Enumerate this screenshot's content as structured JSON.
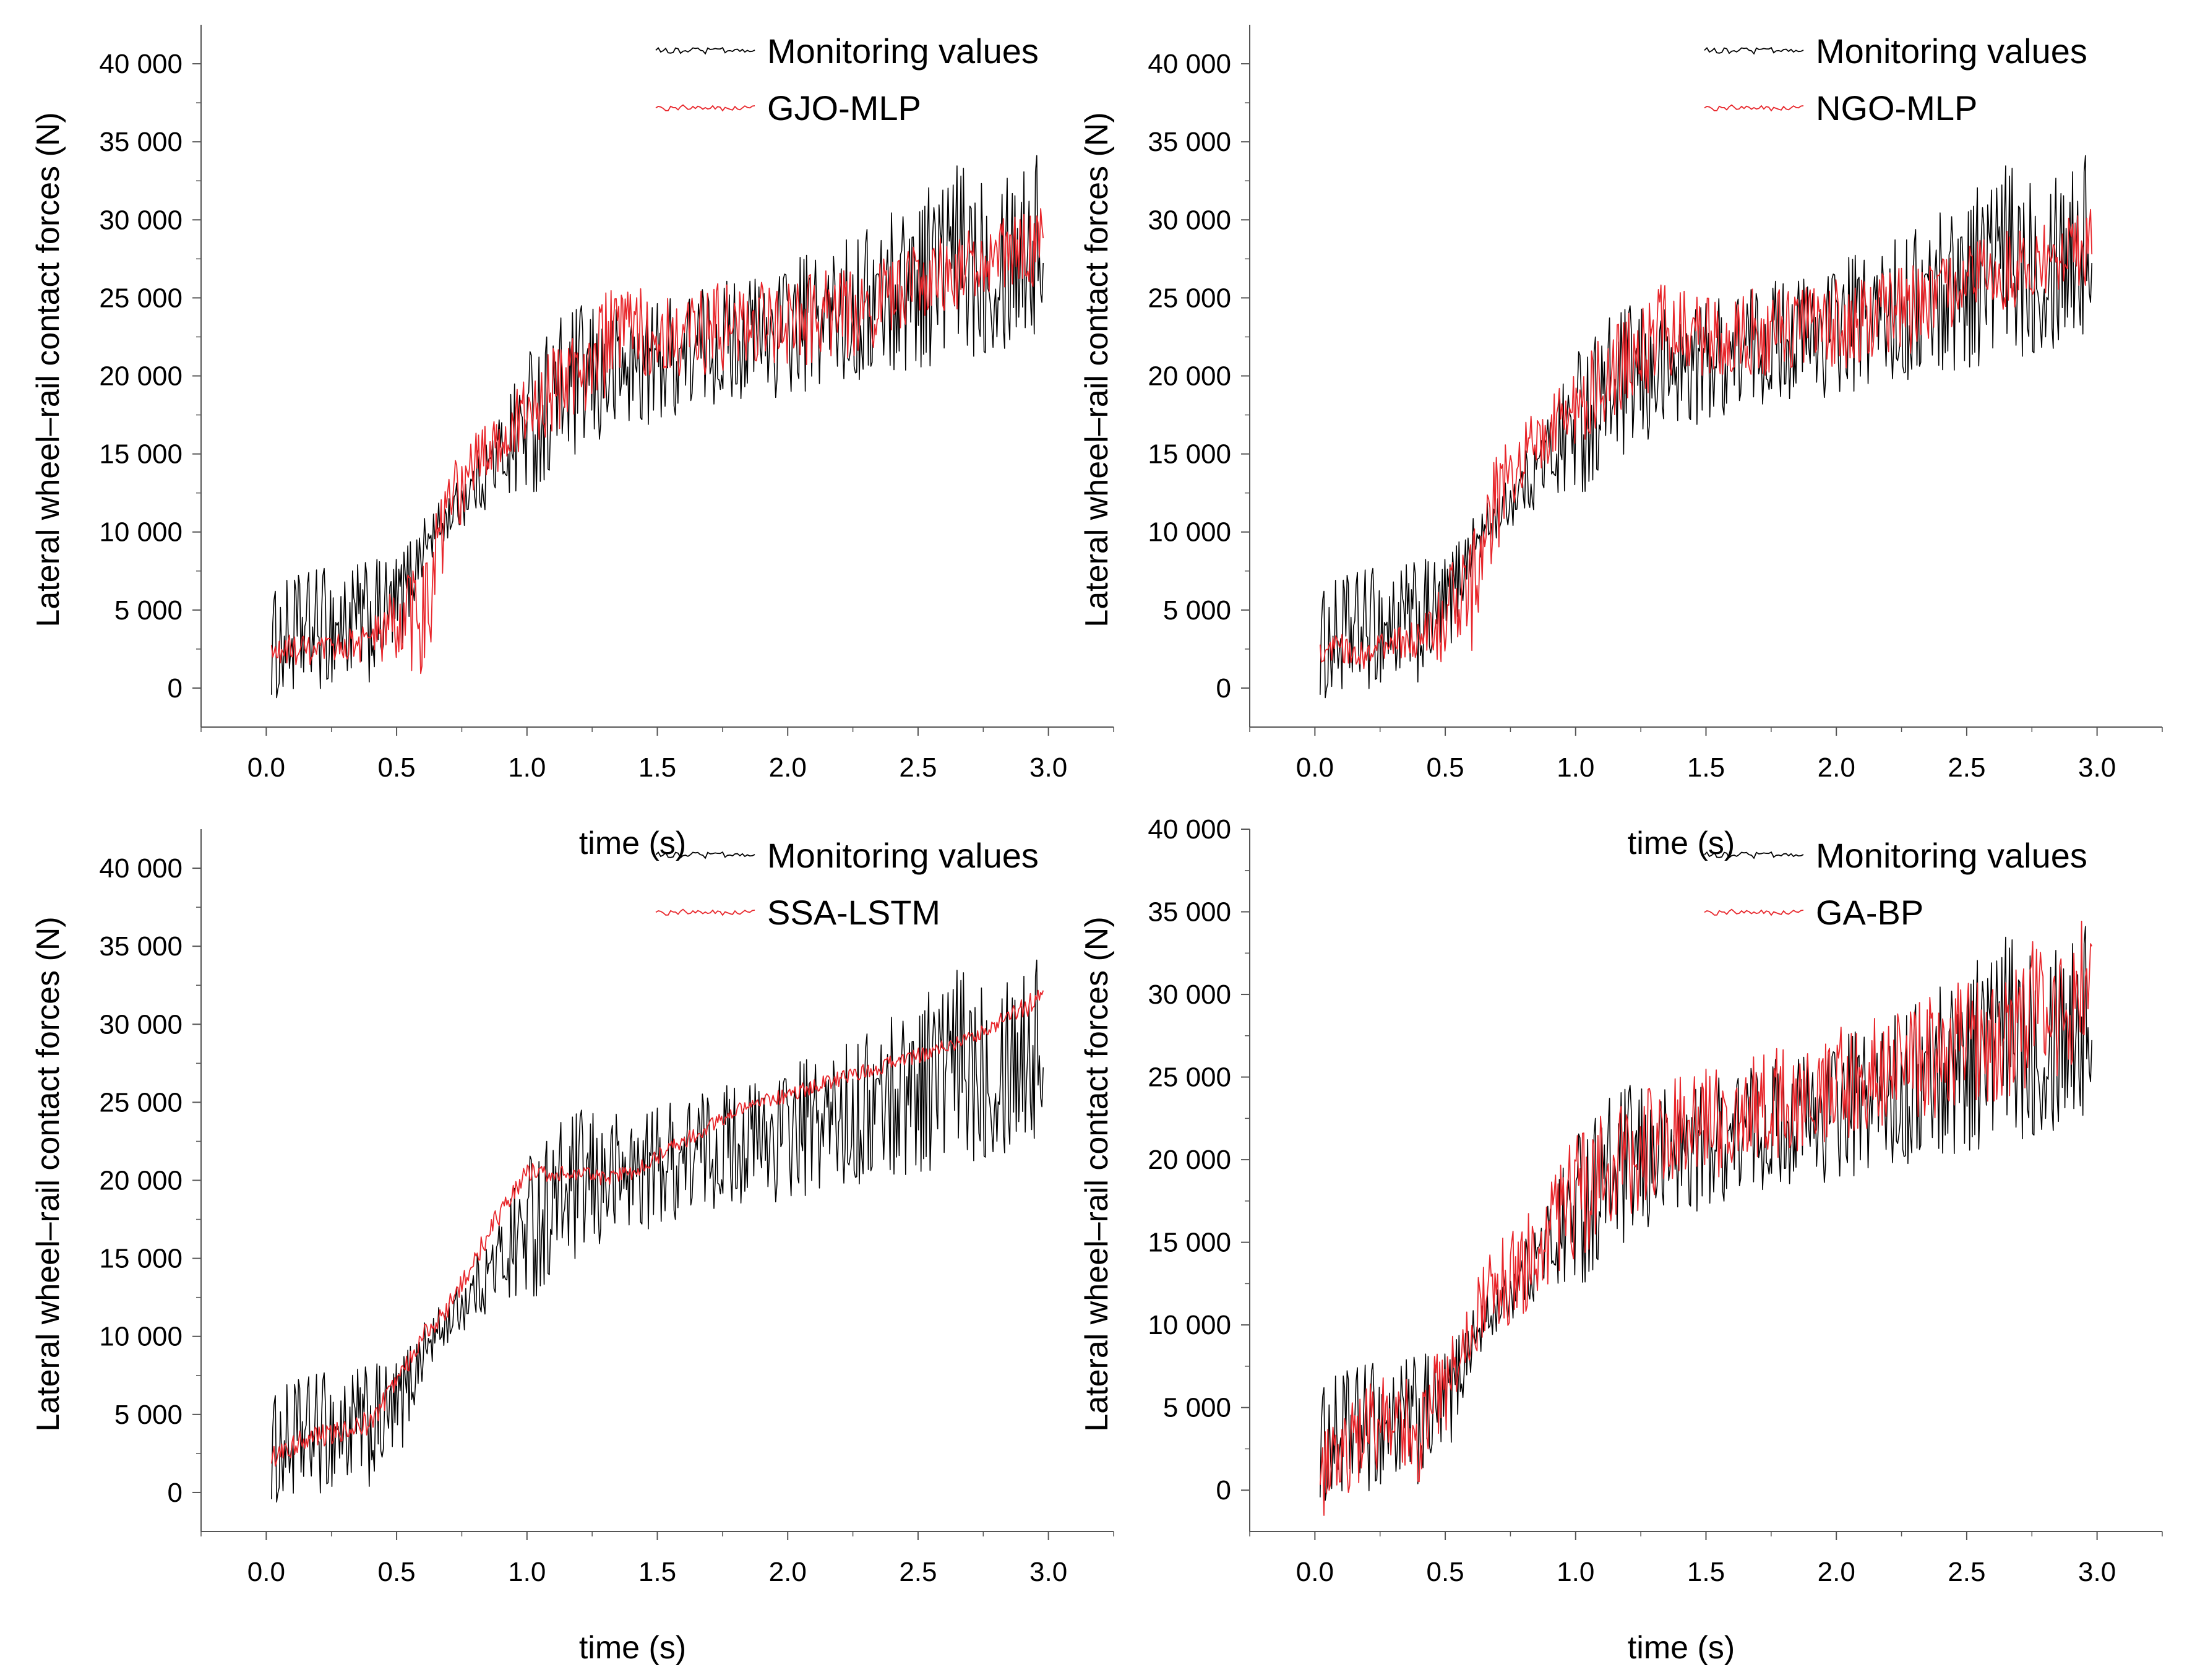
{
  "chart_data": [
    {
      "type": "line",
      "panel": "top-left",
      "title": "",
      "xlabel": "time (s)",
      "ylabel": "Lateral wheel–rail contact forces (N)",
      "xlim": [
        -0.25,
        3.25
      ],
      "ylim": [
        -2500,
        42500
      ],
      "xticks": [
        0.0,
        0.5,
        1.0,
        1.5,
        2.0,
        2.5,
        3.0
      ],
      "xtick_labels": [
        "0.0",
        "0.5",
        "1.0",
        "1.5",
        "2.0",
        "2.5",
        "3.0"
      ],
      "yticks": [
        0,
        5000,
        10000,
        15000,
        20000,
        25000,
        30000,
        35000,
        40000
      ],
      "ytick_labels": [
        "0",
        "5 000",
        "10 000",
        "15 000",
        "20 000",
        "25 000",
        "30 000",
        "35 000",
        "40 000"
      ],
      "legend_position": "top-right",
      "series": [
        {
          "name": "Monitoring values",
          "color": "#000000",
          "x": [
            0.0,
            0.1,
            0.2,
            0.3,
            0.4,
            0.5,
            0.6,
            0.7,
            0.8,
            0.9,
            1.0,
            1.1,
            1.2,
            1.3,
            1.4,
            1.5,
            1.6,
            1.7,
            1.8,
            1.9,
            2.0,
            2.1,
            2.2,
            2.3,
            2.4,
            2.5,
            2.6,
            2.7,
            2.8,
            2.9,
            3.0
          ],
          "values": [
            2500,
            3200,
            3800,
            4000,
            4200,
            5000,
            9000,
            11000,
            13000,
            15000,
            17000,
            18500,
            19500,
            20000,
            20500,
            21000,
            21500,
            22000,
            22500,
            22500,
            23000,
            23500,
            24000,
            24500,
            25500,
            26500,
            27000,
            27500,
            28000,
            28500,
            28500
          ],
          "amplitude": [
            3500,
            4000,
            4000,
            4000,
            4000,
            3500,
            2000,
            1500,
            2000,
            3000,
            5000,
            5000,
            5000,
            4500,
            4000,
            4000,
            4000,
            4000,
            4000,
            4000,
            4500,
            4500,
            4500,
            5000,
            5500,
            6000,
            6500,
            6500,
            6500,
            6500,
            6500
          ]
        },
        {
          "name": "GJO-MLP",
          "color": "#e8262b",
          "x": [
            0.0,
            0.1,
            0.2,
            0.3,
            0.4,
            0.5,
            0.6,
            0.7,
            0.8,
            0.9,
            1.0,
            1.1,
            1.2,
            1.3,
            1.4,
            1.5,
            1.6,
            1.7,
            1.8,
            1.9,
            2.0,
            2.1,
            2.2,
            2.3,
            2.4,
            2.5,
            2.6,
            2.7,
            2.8,
            2.9,
            3.0
          ],
          "values": [
            2000,
            2500,
            2200,
            2800,
            3000,
            4000,
            4500,
            11000,
            14500,
            16000,
            17500,
            19000,
            20500,
            22000,
            23000,
            22500,
            22500,
            23000,
            23000,
            23500,
            23500,
            23500,
            24000,
            24500,
            25000,
            26000,
            26500,
            27000,
            27500,
            28000,
            28500
          ],
          "amplitude": [
            800,
            1000,
            1000,
            1000,
            1500,
            3000,
            4000,
            3500,
            2000,
            2000,
            2500,
            3000,
            3000,
            3500,
            3000,
            2500,
            2500,
            3000,
            3000,
            2500,
            3000,
            3000,
            3000,
            3000,
            2500,
            2500,
            2500,
            2500,
            2500,
            2500,
            2500
          ]
        }
      ]
    },
    {
      "type": "line",
      "panel": "top-right",
      "title": "",
      "xlabel": "time (s)",
      "ylabel": "Lateral wheel–rail contact forces (N)",
      "xlim": [
        -0.25,
        3.25
      ],
      "ylim": [
        -2500,
        42500
      ],
      "xticks": [
        0.0,
        0.5,
        1.0,
        1.5,
        2.0,
        2.5,
        3.0
      ],
      "xtick_labels": [
        "0.0",
        "0.5",
        "1.0",
        "1.5",
        "2.0",
        "2.5",
        "3.0"
      ],
      "yticks": [
        0,
        5000,
        10000,
        15000,
        20000,
        25000,
        30000,
        35000,
        40000
      ],
      "ytick_labels": [
        "0",
        "5 000",
        "10 000",
        "15 000",
        "20 000",
        "25 000",
        "30 000",
        "35 000",
        "40 000"
      ],
      "legend_position": "top-right",
      "series": [
        {
          "name": "Monitoring values",
          "color": "#000000",
          "x": [
            0.0,
            0.1,
            0.2,
            0.3,
            0.4,
            0.5,
            0.6,
            0.7,
            0.8,
            0.9,
            1.0,
            1.1,
            1.2,
            1.3,
            1.4,
            1.5,
            1.6,
            1.7,
            1.8,
            1.9,
            2.0,
            2.1,
            2.2,
            2.3,
            2.4,
            2.5,
            2.6,
            2.7,
            2.8,
            2.9,
            3.0
          ],
          "values": [
            2500,
            3200,
            3800,
            4000,
            4200,
            5000,
            9000,
            11000,
            13000,
            15000,
            17000,
            18500,
            19500,
            20000,
            20500,
            21000,
            21500,
            22000,
            22500,
            22500,
            23000,
            23500,
            24000,
            24500,
            25500,
            26500,
            27000,
            27500,
            28000,
            28500,
            28500
          ],
          "amplitude": [
            3500,
            4000,
            4000,
            4000,
            4000,
            3500,
            2000,
            1500,
            2000,
            3000,
            5000,
            5000,
            5000,
            4500,
            4000,
            4000,
            4000,
            4000,
            4000,
            4000,
            4500,
            4500,
            4500,
            5000,
            5500,
            6000,
            6500,
            6500,
            6500,
            6500,
            6500
          ]
        },
        {
          "name": "NGO-MLP",
          "color": "#e8262b",
          "x": [
            0.0,
            0.1,
            0.2,
            0.3,
            0.4,
            0.5,
            0.6,
            0.7,
            0.8,
            0.9,
            1.0,
            1.1,
            1.2,
            1.3,
            1.4,
            1.5,
            1.6,
            1.7,
            1.8,
            1.9,
            2.0,
            2.1,
            2.2,
            2.3,
            2.4,
            2.5,
            2.6,
            2.7,
            2.8,
            2.9,
            3.0
          ],
          "values": [
            2000,
            2500,
            2200,
            2800,
            3000,
            4500,
            6000,
            12000,
            15000,
            16500,
            18000,
            19500,
            21000,
            22500,
            23000,
            22500,
            22500,
            23000,
            23000,
            23500,
            23500,
            23500,
            24000,
            24500,
            25000,
            26000,
            26500,
            27000,
            27500,
            28000,
            28500
          ],
          "amplitude": [
            800,
            1000,
            1000,
            1000,
            1500,
            3000,
            4000,
            3500,
            2000,
            2000,
            2500,
            3000,
            3000,
            3500,
            3000,
            2500,
            2500,
            3000,
            3000,
            2500,
            3000,
            3000,
            3000,
            3000,
            2500,
            2500,
            2500,
            2500,
            2500,
            2500,
            2500
          ]
        }
      ]
    },
    {
      "type": "line",
      "panel": "bottom-left",
      "title": "",
      "xlabel": "time (s)",
      "ylabel": "Lateral wheel–rail contact forces (N)",
      "xlim": [
        -0.25,
        3.25
      ],
      "ylim": [
        -2500,
        42500
      ],
      "xticks": [
        0.0,
        0.5,
        1.0,
        1.5,
        2.0,
        2.5,
        3.0
      ],
      "xtick_labels": [
        "0.0",
        "0.5",
        "1.0",
        "1.5",
        "2.0",
        "2.5",
        "3.0"
      ],
      "yticks": [
        0,
        5000,
        10000,
        15000,
        20000,
        25000,
        30000,
        35000,
        40000
      ],
      "ytick_labels": [
        "0",
        "5 000",
        "10 000",
        "15 000",
        "20 000",
        "25 000",
        "30 000",
        "35 000",
        "40 000"
      ],
      "legend_position": "top-right",
      "series": [
        {
          "name": "Monitoring values",
          "color": "#000000",
          "x": [
            0.0,
            0.1,
            0.2,
            0.3,
            0.4,
            0.5,
            0.6,
            0.7,
            0.8,
            0.9,
            1.0,
            1.1,
            1.2,
            1.3,
            1.4,
            1.5,
            1.6,
            1.7,
            1.8,
            1.9,
            2.0,
            2.1,
            2.2,
            2.3,
            2.4,
            2.5,
            2.6,
            2.7,
            2.8,
            2.9,
            3.0
          ],
          "values": [
            2500,
            3200,
            3800,
            4000,
            4200,
            5000,
            9000,
            11000,
            13000,
            15000,
            17000,
            18500,
            19500,
            20000,
            20500,
            21000,
            21500,
            22000,
            22500,
            22500,
            23000,
            23500,
            24000,
            24500,
            25500,
            26500,
            27000,
            27500,
            28000,
            28500,
            28500
          ],
          "amplitude": [
            3500,
            4000,
            4000,
            4000,
            4000,
            3500,
            2000,
            1500,
            2000,
            3000,
            5000,
            5000,
            5000,
            4500,
            4000,
            4000,
            4000,
            4000,
            4000,
            4000,
            4500,
            4500,
            4500,
            5000,
            5500,
            6000,
            6500,
            6500,
            6500,
            6500,
            6500
          ]
        },
        {
          "name": "SSA-LSTM",
          "color": "#e8262b",
          "x": [
            0.0,
            0.1,
            0.2,
            0.3,
            0.4,
            0.5,
            0.6,
            0.7,
            0.8,
            0.9,
            1.0,
            1.1,
            1.2,
            1.3,
            1.4,
            1.5,
            1.6,
            1.7,
            1.8,
            1.9,
            2.0,
            2.1,
            2.2,
            2.3,
            2.4,
            2.5,
            2.6,
            2.7,
            2.8,
            2.9,
            3.0
          ],
          "values": [
            2000,
            3000,
            3500,
            4000,
            4500,
            7000,
            10000,
            12000,
            15000,
            18000,
            20500,
            20500,
            20500,
            20000,
            20500,
            21500,
            22500,
            23500,
            24500,
            25000,
            25500,
            26000,
            26500,
            27000,
            27500,
            28000,
            28500,
            29000,
            30000,
            31000,
            32000
          ],
          "amplitude": [
            700,
            800,
            800,
            800,
            800,
            800,
            700,
            700,
            700,
            700,
            600,
            600,
            500,
            500,
            500,
            500,
            500,
            500,
            500,
            500,
            500,
            500,
            500,
            500,
            500,
            500,
            500,
            500,
            500,
            700,
            900
          ]
        }
      ]
    },
    {
      "type": "line",
      "panel": "bottom-right",
      "title": "",
      "xlabel": "time (s)",
      "ylabel": "Lateral wheel–rail contact forces (N)",
      "xlim": [
        -0.25,
        3.25
      ],
      "ylim": [
        -2500,
        40000
      ],
      "xticks": [
        0.0,
        0.5,
        1.0,
        1.5,
        2.0,
        2.5,
        3.0
      ],
      "xtick_labels": [
        "0.0",
        "0.5",
        "1.0",
        "1.5",
        "2.0",
        "2.5",
        "3.0"
      ],
      "yticks": [
        0,
        5000,
        10000,
        15000,
        20000,
        25000,
        30000,
        35000,
        40000
      ],
      "ytick_labels": [
        "0",
        "5 000",
        "10 000",
        "15 000",
        "20 000",
        "25 000",
        "30 000",
        "35 000",
        "40 000"
      ],
      "legend_position": "top-right",
      "series": [
        {
          "name": "Monitoring values",
          "color": "#000000",
          "x": [
            0.0,
            0.1,
            0.2,
            0.3,
            0.4,
            0.5,
            0.6,
            0.7,
            0.8,
            0.9,
            1.0,
            1.1,
            1.2,
            1.3,
            1.4,
            1.5,
            1.6,
            1.7,
            1.8,
            1.9,
            2.0,
            2.1,
            2.2,
            2.3,
            2.4,
            2.5,
            2.6,
            2.7,
            2.8,
            2.9,
            3.0
          ],
          "values": [
            2500,
            3200,
            3800,
            4000,
            4200,
            5000,
            9000,
            11000,
            13000,
            15000,
            17000,
            18500,
            19500,
            20000,
            20500,
            21000,
            21500,
            22000,
            22500,
            22500,
            23000,
            23500,
            24000,
            24500,
            25500,
            26500,
            27000,
            27500,
            28000,
            28500,
            28500
          ],
          "amplitude": [
            3500,
            4000,
            4000,
            4000,
            4000,
            3500,
            2000,
            1500,
            2000,
            3000,
            5000,
            5000,
            5000,
            4500,
            4000,
            4000,
            4000,
            4000,
            4000,
            4000,
            4500,
            4500,
            4500,
            5000,
            5500,
            6000,
            6500,
            6500,
            6500,
            6500,
            6500
          ]
        },
        {
          "name": "GA-BP",
          "color": "#e8262b",
          "x": [
            0.0,
            0.1,
            0.2,
            0.3,
            0.4,
            0.5,
            0.6,
            0.7,
            0.8,
            0.9,
            1.0,
            1.1,
            1.2,
            1.3,
            1.4,
            1.5,
            1.6,
            1.7,
            1.8,
            1.9,
            2.0,
            2.1,
            2.2,
            2.3,
            2.4,
            2.5,
            2.6,
            2.7,
            2.8,
            2.9,
            3.0
          ],
          "values": [
            500,
            2500,
            3500,
            4000,
            3500,
            6500,
            10000,
            12000,
            13500,
            15500,
            18000,
            19000,
            20000,
            21000,
            21500,
            22000,
            22500,
            23000,
            23500,
            24000,
            24500,
            25000,
            25500,
            26000,
            26500,
            27000,
            27500,
            28500,
            29000,
            30000,
            31000
          ],
          "amplitude": [
            3000,
            3000,
            3000,
            3000,
            3000,
            3000,
            3000,
            3000,
            3000,
            3500,
            4000,
            4000,
            3500,
            3500,
            3500,
            3500,
            3500,
            3500,
            3500,
            3500,
            3500,
            3500,
            3500,
            3500,
            4000,
            4000,
            4500,
            4500,
            4500,
            4500,
            4500
          ]
        }
      ]
    }
  ]
}
